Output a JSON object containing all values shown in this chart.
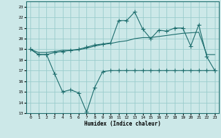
{
  "xlabel": "Humidex (Indice chaleur)",
  "ylabel": "",
  "xlim": [
    -0.5,
    23.5
  ],
  "ylim": [
    13,
    23.5
  ],
  "yticks": [
    13,
    14,
    15,
    16,
    17,
    18,
    19,
    20,
    21,
    22,
    23
  ],
  "xticks": [
    0,
    1,
    2,
    3,
    4,
    5,
    6,
    7,
    8,
    9,
    10,
    11,
    12,
    13,
    14,
    15,
    16,
    17,
    18,
    19,
    20,
    21,
    22,
    23
  ],
  "bg_color": "#cce8e8",
  "grid_color": "#99cccc",
  "line_color": "#1a6b6b",
  "line1_x": [
    0,
    1,
    2,
    3,
    4,
    5,
    6,
    7,
    8,
    9,
    10,
    11,
    12,
    13,
    14,
    15,
    16,
    17,
    18,
    19,
    20,
    21,
    22,
    23
  ],
  "line1_y": [
    19.0,
    18.5,
    18.5,
    18.7,
    18.8,
    18.9,
    19.0,
    19.2,
    19.4,
    19.5,
    19.6,
    21.7,
    21.7,
    22.5,
    20.9,
    20.0,
    20.8,
    20.7,
    21.0,
    21.0,
    19.3,
    21.3,
    18.3,
    17.0
  ],
  "line2_x": [
    0,
    1,
    2,
    3,
    4,
    5,
    6,
    7,
    8,
    9,
    10,
    11,
    12,
    13,
    14,
    15,
    16,
    17,
    18,
    19,
    20,
    21,
    22,
    23
  ],
  "line2_y": [
    19.0,
    18.7,
    18.7,
    18.8,
    18.9,
    18.9,
    18.95,
    19.1,
    19.3,
    19.45,
    19.55,
    19.7,
    19.8,
    20.0,
    20.1,
    20.1,
    20.2,
    20.3,
    20.4,
    20.5,
    20.55,
    20.6,
    18.5,
    18.5
  ],
  "line3_x": [
    0,
    1,
    2,
    3,
    4,
    5,
    6,
    7,
    8,
    9,
    10,
    11,
    12,
    13,
    14,
    15,
    16,
    17,
    18,
    19,
    20,
    21,
    22,
    23
  ],
  "line3_y": [
    19.0,
    18.5,
    18.5,
    16.7,
    15.0,
    15.2,
    14.9,
    13.1,
    15.4,
    16.9,
    17.0,
    17.0,
    17.0,
    17.0,
    17.0,
    17.0,
    17.0,
    17.0,
    17.0,
    17.0,
    17.0,
    17.0,
    17.0,
    17.0
  ]
}
